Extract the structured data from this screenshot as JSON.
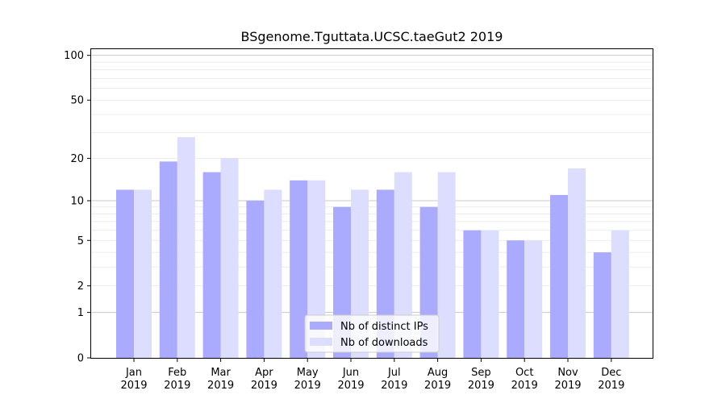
{
  "chart_data": {
    "type": "bar",
    "title": "BSgenome.Tguttata.UCSC.taeGut2 2019",
    "xlabel": "",
    "ylabel": "",
    "yscale": "log(y+1)",
    "ylim": [
      0,
      110
    ],
    "yticks": [
      0,
      1,
      2,
      5,
      10,
      20,
      50,
      100
    ],
    "ytick_labels": [
      "0",
      "1",
      "2",
      "5",
      "10",
      "20",
      "50",
      "100"
    ],
    "categories": [
      {
        "month": "Jan",
        "year": "2019"
      },
      {
        "month": "Feb",
        "year": "2019"
      },
      {
        "month": "Mar",
        "year": "2019"
      },
      {
        "month": "Apr",
        "year": "2019"
      },
      {
        "month": "May",
        "year": "2019"
      },
      {
        "month": "Jun",
        "year": "2019"
      },
      {
        "month": "Jul",
        "year": "2019"
      },
      {
        "month": "Aug",
        "year": "2019"
      },
      {
        "month": "Sep",
        "year": "2019"
      },
      {
        "month": "Oct",
        "year": "2019"
      },
      {
        "month": "Nov",
        "year": "2019"
      },
      {
        "month": "Dec",
        "year": "2019"
      }
    ],
    "series": [
      {
        "name": "Nb of distinct IPs",
        "color": "#aaaaff",
        "values": [
          12,
          19,
          16,
          10,
          14,
          9,
          12,
          9,
          6,
          5,
          11,
          4
        ]
      },
      {
        "name": "Nb of downloads",
        "color": "#ddddff",
        "values": [
          12,
          28,
          20,
          12,
          14,
          12,
          16,
          16,
          6,
          5,
          17,
          6
        ]
      }
    ],
    "legend_position": "bottom-center",
    "grid": "horizontal"
  }
}
